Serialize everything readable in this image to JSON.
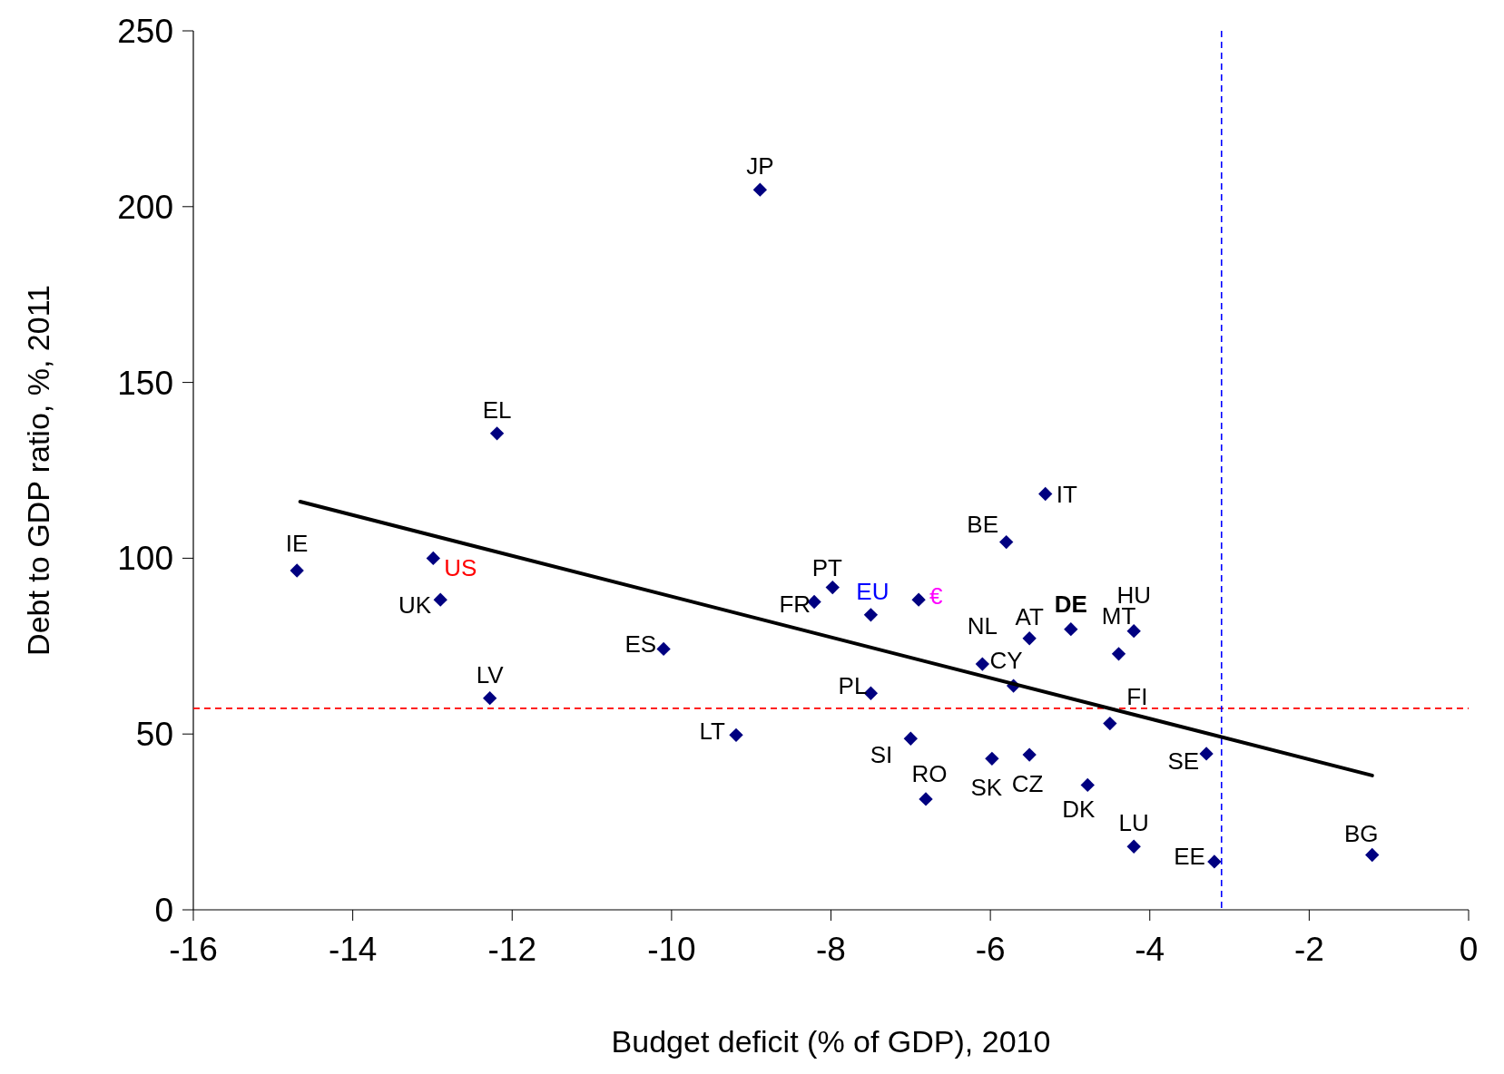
{
  "chart_data": {
    "type": "scatter",
    "xlabel": "Budget deficit (% of GDP), 2010",
    "ylabel": "Debt to GDP ratio, %, 2011",
    "xlim": [
      -16,
      0
    ],
    "xticks": [
      -16,
      -14,
      -12,
      -10,
      -8,
      -6,
      -4,
      -2,
      0
    ],
    "ylim": [
      0,
      250
    ],
    "yticks": [
      0,
      50,
      100,
      150,
      200,
      250
    ],
    "grid": false,
    "series": [
      {
        "marker": "diamond",
        "color": "#000080",
        "x": [
          -14.7,
          -12.99,
          -12.9,
          -12.19,
          -12.28,
          -10.1,
          -8.89,
          -9.19,
          -8.21,
          -7.98,
          -7.5,
          -6.9,
          -7.5,
          -7.0,
          -6.81,
          -5.8,
          -5.31,
          -6.1,
          -5.71,
          -5.51,
          -4.99,
          -4.39,
          -4.2,
          -4.5,
          -5.98,
          -5.51,
          -4.78,
          -4.2,
          -3.29,
          -3.19,
          -1.21
        ],
        "values": [
          96.5,
          100,
          88.2,
          135.5,
          60.2,
          74.2,
          204.8,
          49.7,
          87.6,
          91.7,
          83.9,
          88.2,
          61.6,
          48.7,
          31.5,
          104.6,
          118.3,
          69.9,
          63.7,
          77.2,
          79.8,
          72.8,
          79.3,
          53.0,
          43.0,
          44.1,
          35.5,
          18.0,
          44.4,
          13.7,
          15.6
        ]
      },
      {
        "type": "line",
        "color": "#000000",
        "x": [
          -14.66,
          -1.21
        ],
        "values": [
          116.1,
          38.2
        ]
      }
    ],
    "ref_lines": [
      {
        "axis": "y",
        "value": 57.3,
        "color": "#ff0000",
        "line_style": "dashed"
      },
      {
        "axis": "x",
        "value": -3.1,
        "color": "#0000ff",
        "line_style": "dashed"
      }
    ],
    "annotations": [
      {
        "text": "IE",
        "x": -14.7,
        "y": 96.5
      },
      {
        "text": "US",
        "x": -12.99,
        "y": 100
      },
      {
        "text": "UK",
        "x": -12.9,
        "y": 88.2
      },
      {
        "text": "EL",
        "x": -12.19,
        "y": 135.5
      },
      {
        "text": "LV",
        "x": -12.28,
        "y": 60.2
      },
      {
        "text": "ES",
        "x": -10.1,
        "y": 74.2
      },
      {
        "text": "JP",
        "x": -8.89,
        "y": 204.8
      },
      {
        "text": "LT",
        "x": -9.19,
        "y": 49.7
      },
      {
        "text": "FR",
        "x": -8.21,
        "y": 87.6
      },
      {
        "text": "PT",
        "x": -7.98,
        "y": 91.7
      },
      {
        "text": "EU",
        "x": -7.5,
        "y": 83.9
      },
      {
        "text": "€",
        "x": -6.9,
        "y": 88.2
      },
      {
        "text": "PL",
        "x": -7.5,
        "y": 61.6
      },
      {
        "text": "SI",
        "x": -7.0,
        "y": 48.7
      },
      {
        "text": "RO",
        "x": -6.81,
        "y": 31.5
      },
      {
        "text": "BE",
        "x": -5.8,
        "y": 104.6
      },
      {
        "text": "IT",
        "x": -5.31,
        "y": 118.3
      },
      {
        "text": "NL",
        "x": -6.1,
        "y": 69.9
      },
      {
        "text": "CY",
        "x": -5.71,
        "y": 63.7
      },
      {
        "text": "AT",
        "x": -5.51,
        "y": 77.2
      },
      {
        "text": "DE",
        "x": -4.99,
        "y": 79.8
      },
      {
        "text": "MT",
        "x": -4.39,
        "y": 72.8
      },
      {
        "text": "HU",
        "x": -4.2,
        "y": 79.3
      },
      {
        "text": "FI",
        "x": -4.5,
        "y": 53.0
      },
      {
        "text": "SK",
        "x": -5.98,
        "y": 43.0
      },
      {
        "text": "CZ",
        "x": -5.51,
        "y": 44.1
      },
      {
        "text": "DK",
        "x": -4.78,
        "y": 35.5
      },
      {
        "text": "LU",
        "x": -4.2,
        "y": 18.0
      },
      {
        "text": "SE",
        "x": -3.29,
        "y": 44.4
      },
      {
        "text": "EE",
        "x": -3.19,
        "y": 13.7
      },
      {
        "text": "BG",
        "x": -1.21,
        "y": 15.6
      }
    ]
  }
}
